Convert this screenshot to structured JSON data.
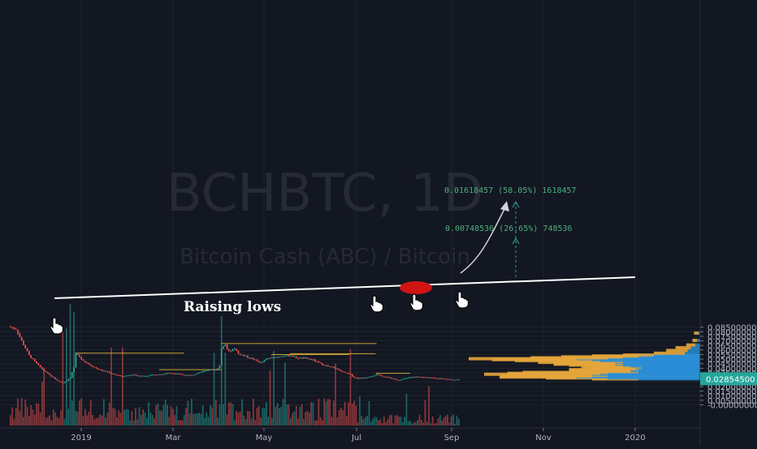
{
  "chart_data": {
    "type": "candlestick",
    "symbol": "BCHBTC, 1D",
    "symbol_description": "Bitcoin Cash (ABC) / Bitcoin",
    "x_labels": [
      "2019",
      "Mar",
      "May",
      "Jul",
      "Sep",
      "Nov",
      "2020"
    ],
    "price_axis": {
      "ticks": [
        "0.08500000",
        "0.08000000",
        "0.07500000",
        "0.07000000",
        "0.06500000",
        "0.06000000",
        "0.05500000",
        "0.05000000",
        "0.04500000",
        "0.04000000",
        "0.03500000",
        "0.03000000",
        "0.02500000",
        "0.02000000",
        "0.01500000",
        "0.01000000",
        "0.00500000",
        "-0.00000000"
      ],
      "last_price": "0.02854500",
      "last_price_color": "#26a69a"
    },
    "candle_colors": {
      "up": "#26a69a",
      "down": "#ef5350"
    },
    "close_path": [
      [
        0,
        0.085
      ],
      [
        3,
        0.083
      ],
      [
        6,
        0.07
      ],
      [
        10,
        0.054
      ],
      [
        14,
        0.045
      ],
      [
        18,
        0.037
      ],
      [
        22,
        0.031
      ],
      [
        26,
        0.0255
      ],
      [
        28,
        0.024
      ],
      [
        30,
        0.0265
      ],
      [
        32,
        0.03
      ],
      [
        34,
        0.041
      ],
      [
        35,
        0.056
      ],
      [
        37,
        0.052
      ],
      [
        40,
        0.047
      ],
      [
        44,
        0.042
      ],
      [
        48,
        0.038
      ],
      [
        52,
        0.036
      ],
      [
        56,
        0.033
      ],
      [
        60,
        0.031
      ],
      [
        64,
        0.033
      ],
      [
        68,
        0.032
      ],
      [
        72,
        0.0315
      ],
      [
        76,
        0.033
      ],
      [
        80,
        0.033
      ],
      [
        84,
        0.035
      ],
      [
        88,
        0.034
      ],
      [
        92,
        0.033
      ],
      [
        96,
        0.032
      ],
      [
        100,
        0.034
      ],
      [
        104,
        0.0375
      ],
      [
        108,
        0.039
      ],
      [
        110,
        0.038
      ],
      [
        112,
        0.043
      ],
      [
        113,
        0.062
      ],
      [
        115,
        0.065
      ],
      [
        117,
        0.058
      ],
      [
        120,
        0.062
      ],
      [
        122,
        0.056
      ],
      [
        126,
        0.053
      ],
      [
        130,
        0.05
      ],
      [
        134,
        0.046
      ],
      [
        138,
        0.051
      ],
      [
        142,
        0.052
      ],
      [
        146,
        0.054
      ],
      [
        150,
        0.054
      ],
      [
        154,
        0.051
      ],
      [
        158,
        0.051
      ],
      [
        162,
        0.049
      ],
      [
        166,
        0.045
      ],
      [
        170,
        0.042
      ],
      [
        174,
        0.04
      ],
      [
        178,
        0.036
      ],
      [
        182,
        0.033
      ],
      [
        184,
        0.03
      ],
      [
        186,
        0.029
      ],
      [
        190,
        0.03
      ],
      [
        194,
        0.032
      ],
      [
        196,
        0.033
      ],
      [
        200,
        0.031
      ],
      [
        204,
        0.029
      ],
      [
        208,
        0.0265
      ],
      [
        210,
        0.028
      ],
      [
        214,
        0.03
      ],
      [
        218,
        0.031
      ],
      [
        222,
        0.03
      ],
      [
        226,
        0.0295
      ],
      [
        230,
        0.029
      ],
      [
        234,
        0.028
      ],
      [
        238,
        0.027
      ],
      [
        240,
        0.0285
      ]
    ],
    "vbp_levels": [
      {
        "price": 0.028,
        "up": 40,
        "down": 30
      },
      {
        "price": 0.029,
        "up": 60,
        "down": 40
      },
      {
        "price": 0.03,
        "up": 80,
        "down": 50
      },
      {
        "price": 0.031,
        "up": 70,
        "down": 60
      },
      {
        "price": 0.032,
        "up": 60,
        "down": 50
      },
      {
        "price": 0.033,
        "up": 70,
        "down": 70
      },
      {
        "price": 0.034,
        "up": 65,
        "down": 60
      },
      {
        "price": 0.035,
        "up": 60,
        "down": 55
      },
      {
        "price": 0.036,
        "up": 40,
        "down": 40
      },
      {
        "price": 0.037,
        "up": 45,
        "down": 40
      },
      {
        "price": 0.038,
        "up": 45,
        "down": 40
      },
      {
        "price": 0.039,
        "up": 40,
        "down": 30
      },
      {
        "price": 0.04,
        "up": 42,
        "down": 35
      },
      {
        "price": 0.041,
        "up": 38,
        "down": 32
      },
      {
        "price": 0.042,
        "up": 45,
        "down": 30
      },
      {
        "price": 0.043,
        "up": 50,
        "down": 35
      },
      {
        "price": 0.044,
        "up": 55,
        "down": 40
      },
      {
        "price": 0.045,
        "up": 50,
        "down": 45
      },
      {
        "price": 0.046,
        "up": 55,
        "down": 50
      },
      {
        "price": 0.047,
        "up": 50,
        "down": 40
      },
      {
        "price": 0.048,
        "up": 65,
        "down": 55
      },
      {
        "price": 0.049,
        "up": 70,
        "down": 65
      },
      {
        "price": 0.05,
        "up": 80,
        "down": 70
      },
      {
        "price": 0.051,
        "up": 60,
        "down": 50
      },
      {
        "price": 0.052,
        "up": 50,
        "down": 40
      },
      {
        "price": 0.053,
        "up": 40,
        "down": 30
      },
      {
        "price": 0.054,
        "up": 30,
        "down": 20
      },
      {
        "price": 0.056,
        "up": 10,
        "down": 20
      },
      {
        "price": 0.059,
        "up": 8,
        "down": 14
      },
      {
        "price": 0.062,
        "up": 6,
        "down": 10
      },
      {
        "price": 0.065,
        "up": 3,
        "down": 6
      },
      {
        "price": 0.07,
        "up": 2,
        "down": 3
      },
      {
        "price": 0.078,
        "up": 1,
        "down": 3
      }
    ],
    "annotations": {
      "trendline_label": "Raising lows",
      "measure_upper": "0.01618457 (58.05%) 1618457",
      "measure_lower": "0.00748536 (26.65%) 748536"
    },
    "grid": true
  }
}
